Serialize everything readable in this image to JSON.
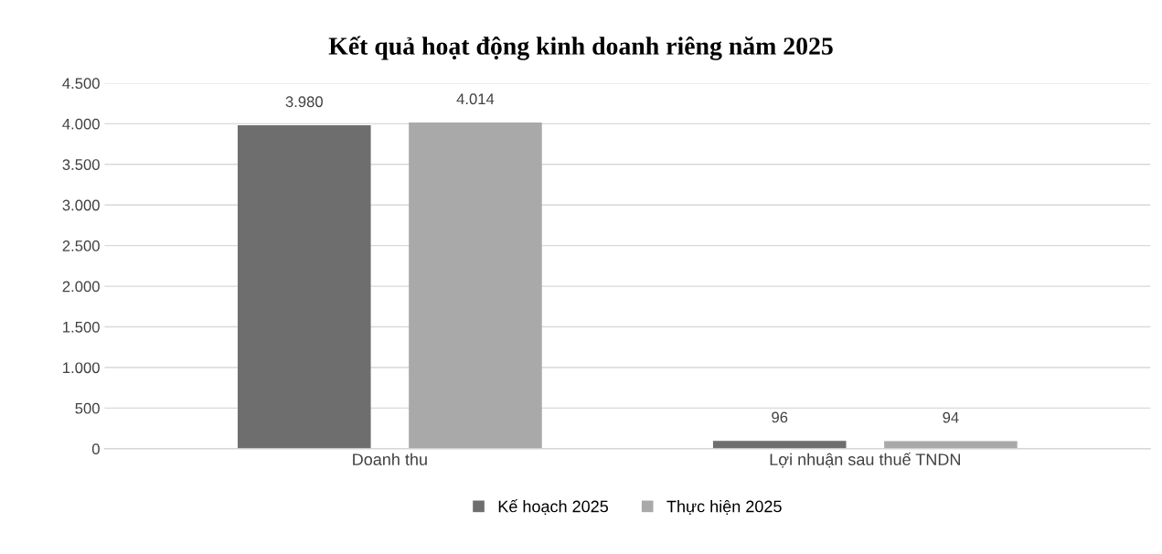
{
  "chart_data": {
    "type": "bar",
    "title": "Kết quả hoạt động kinh doanh riêng năm 2025",
    "categories": [
      "Doanh thu",
      "Lợi nhuận sau thuế TNDN"
    ],
    "series": [
      {
        "name": "Kế hoạch 2025",
        "color": "#6e6e6e",
        "values": [
          3980,
          96
        ],
        "value_labels": [
          "3.980",
          "96"
        ]
      },
      {
        "name": "Thực hiện 2025",
        "color": "#a9a9a9",
        "values": [
          4014,
          94
        ],
        "value_labels": [
          "4.014",
          "94"
        ]
      }
    ],
    "ylim": [
      0,
      4500
    ],
    "yticks": [
      0,
      500,
      {
        "value": 1000,
        "label": "1.000"
      },
      {
        "value": 1500,
        "label": "1.500"
      },
      {
        "value": 2000,
        "label": "2.000"
      },
      {
        "value": 2500,
        "label": "2.500"
      },
      {
        "value": 3000,
        "label": "3.000"
      },
      {
        "value": 3500,
        "label": "3.500"
      },
      {
        "value": 4000,
        "label": "4.000"
      },
      {
        "value": 4500,
        "label": "4.500"
      }
    ],
    "grid": "y",
    "legend": "bottom"
  }
}
